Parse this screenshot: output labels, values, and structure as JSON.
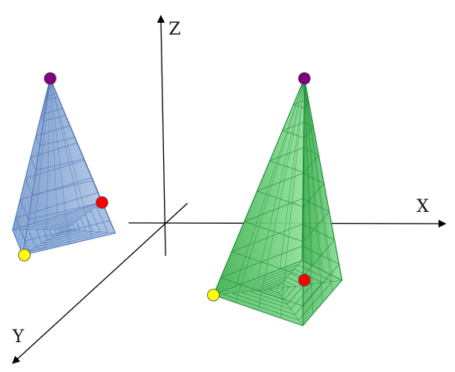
{
  "axes": {
    "x_label": "X",
    "y_label": "Y",
    "z_label": "Z",
    "color": "#000000"
  },
  "pyramids": [
    {
      "name": "blue-pyramid",
      "fill": "#8fb0dc",
      "stroke": "#4f79b3",
      "vertex_colors": {
        "apex": "#800080",
        "right_base": "#ff0000",
        "left_base": "#ffff00"
      }
    },
    {
      "name": "green-pyramid",
      "fill": "#5cc46c",
      "stroke": "#1f8f3a",
      "vertex_colors": {
        "apex": "#800080",
        "inner_base": "#ff0000",
        "left_base": "#ffff00"
      }
    }
  ]
}
